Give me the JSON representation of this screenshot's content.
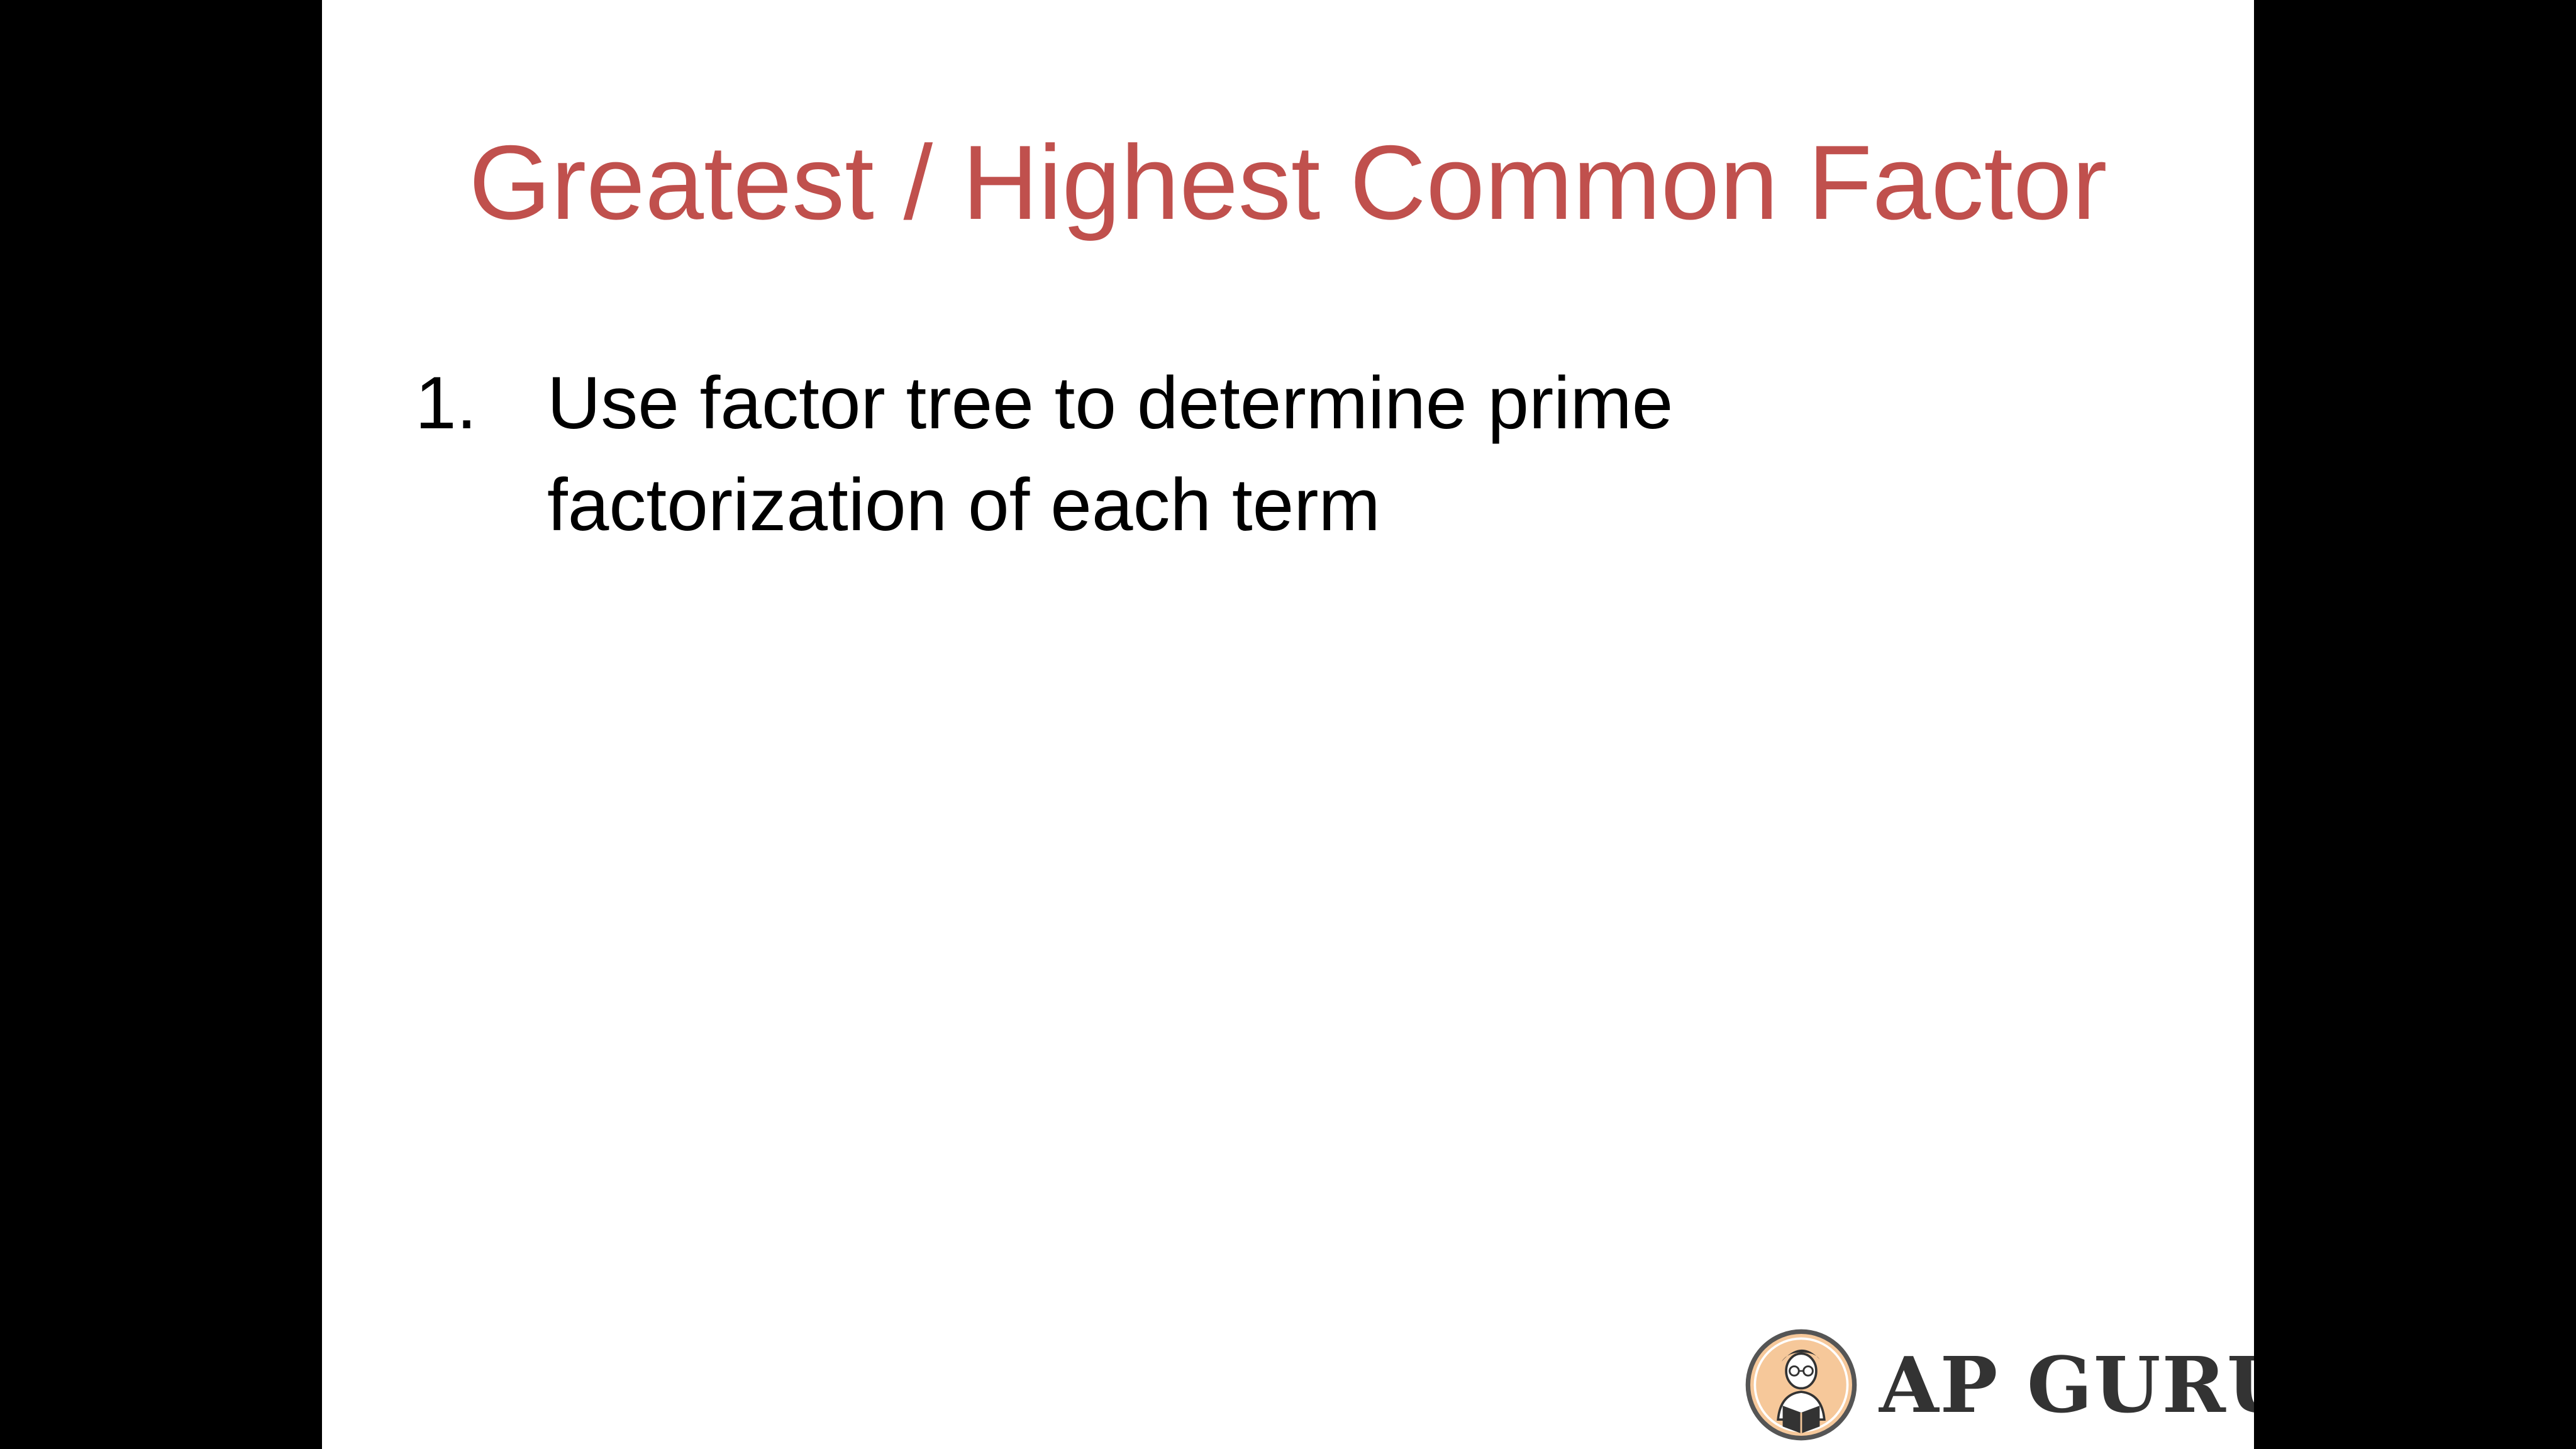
{
  "slide": {
    "title": "Greatest / Highest Common Factor",
    "bullets": [
      {
        "number": "1.",
        "text": "Use factor tree to determine prime factorization of each term"
      }
    ]
  },
  "logo": {
    "text": "AP GURU",
    "icon": "reading-person-icon"
  },
  "colors": {
    "title": "#c0504d",
    "body_text": "#000000",
    "background": "#ffffff",
    "letterbox": "#000000",
    "logo_text": "#333333",
    "logo_badge": "#f6c89a"
  }
}
